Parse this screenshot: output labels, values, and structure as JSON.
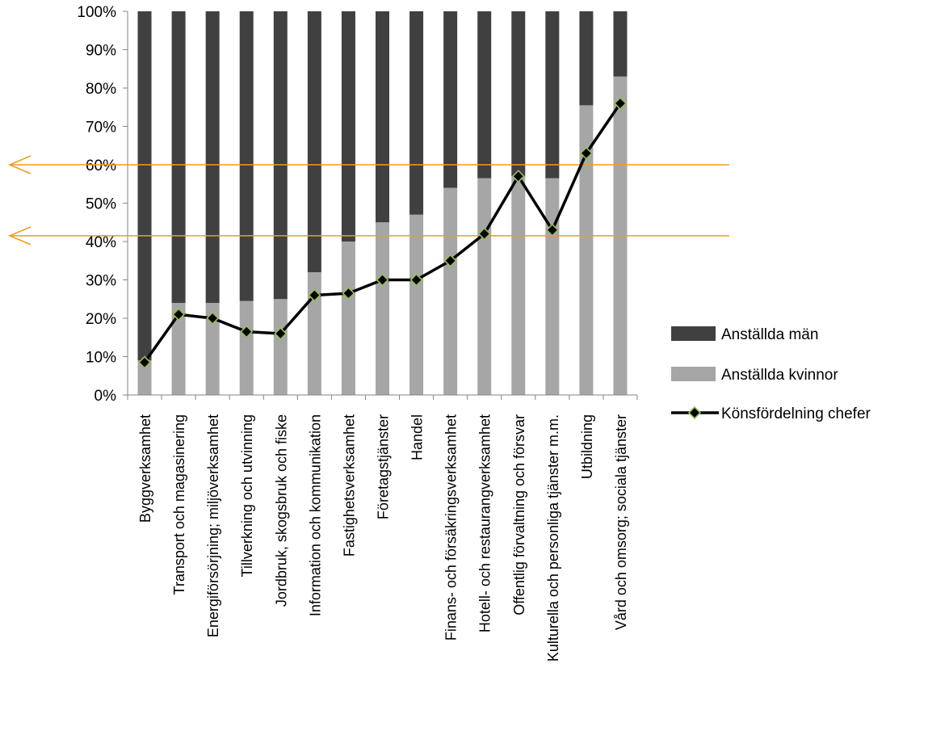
{
  "chart_data": {
    "type": "bar",
    "stacked": true,
    "categories": [
      "Byggverksamhet",
      "Transport och magasinering",
      "Energiförsörjning; miljöverksamhet",
      "Tillverkning och utvinning",
      "Jordbruk, skogsbruk och fiske",
      "Information och kommunikation",
      "Fastighetsverksamhet",
      "Företagstjänster",
      "Handel",
      "Finans- och försäkringsverksamhet",
      "Hotell- och restaurangverksamhet",
      "Offentlig förvaltning och försvar",
      "Kulturella och personliga tjänster m.m.",
      "Utbildning",
      "Vård och omsorg; sociala tjänster"
    ],
    "series": [
      {
        "name": "Anställda män",
        "kind": "bar",
        "color": "#404040",
        "values": [
          91,
          76,
          76,
          75.5,
          75,
          68,
          60,
          55,
          53,
          46,
          43.5,
          43,
          43.5,
          24.5,
          17
        ]
      },
      {
        "name": "Anställda kvinnor",
        "kind": "bar",
        "color": "#a6a6a6",
        "values": [
          9,
          24,
          24,
          24.5,
          25,
          32,
          40,
          45,
          47,
          54,
          56.5,
          57,
          56.5,
          75.5,
          83
        ]
      },
      {
        "name": "Könsfördelning chefer",
        "kind": "line",
        "color": "#000000",
        "marker_color": "#9bbb59",
        "values": [
          8.5,
          21,
          20,
          16.5,
          16,
          26,
          26.5,
          30,
          30,
          35,
          42,
          57,
          43,
          63,
          76
        ]
      }
    ],
    "yticks": [
      "0%",
      "10%",
      "20%",
      "30%",
      "40%",
      "50%",
      "60%",
      "70%",
      "80%",
      "90%",
      "100%"
    ],
    "ylim": [
      0,
      100
    ],
    "reference_lines": [
      {
        "value": 60,
        "color": "#f29b1d",
        "arrow": "left"
      },
      {
        "value": 41.5,
        "color": "#f29b1d",
        "arrow": "left"
      }
    ],
    "legend_position": "right",
    "grid": false,
    "title": "",
    "xlabel": "",
    "ylabel": ""
  }
}
